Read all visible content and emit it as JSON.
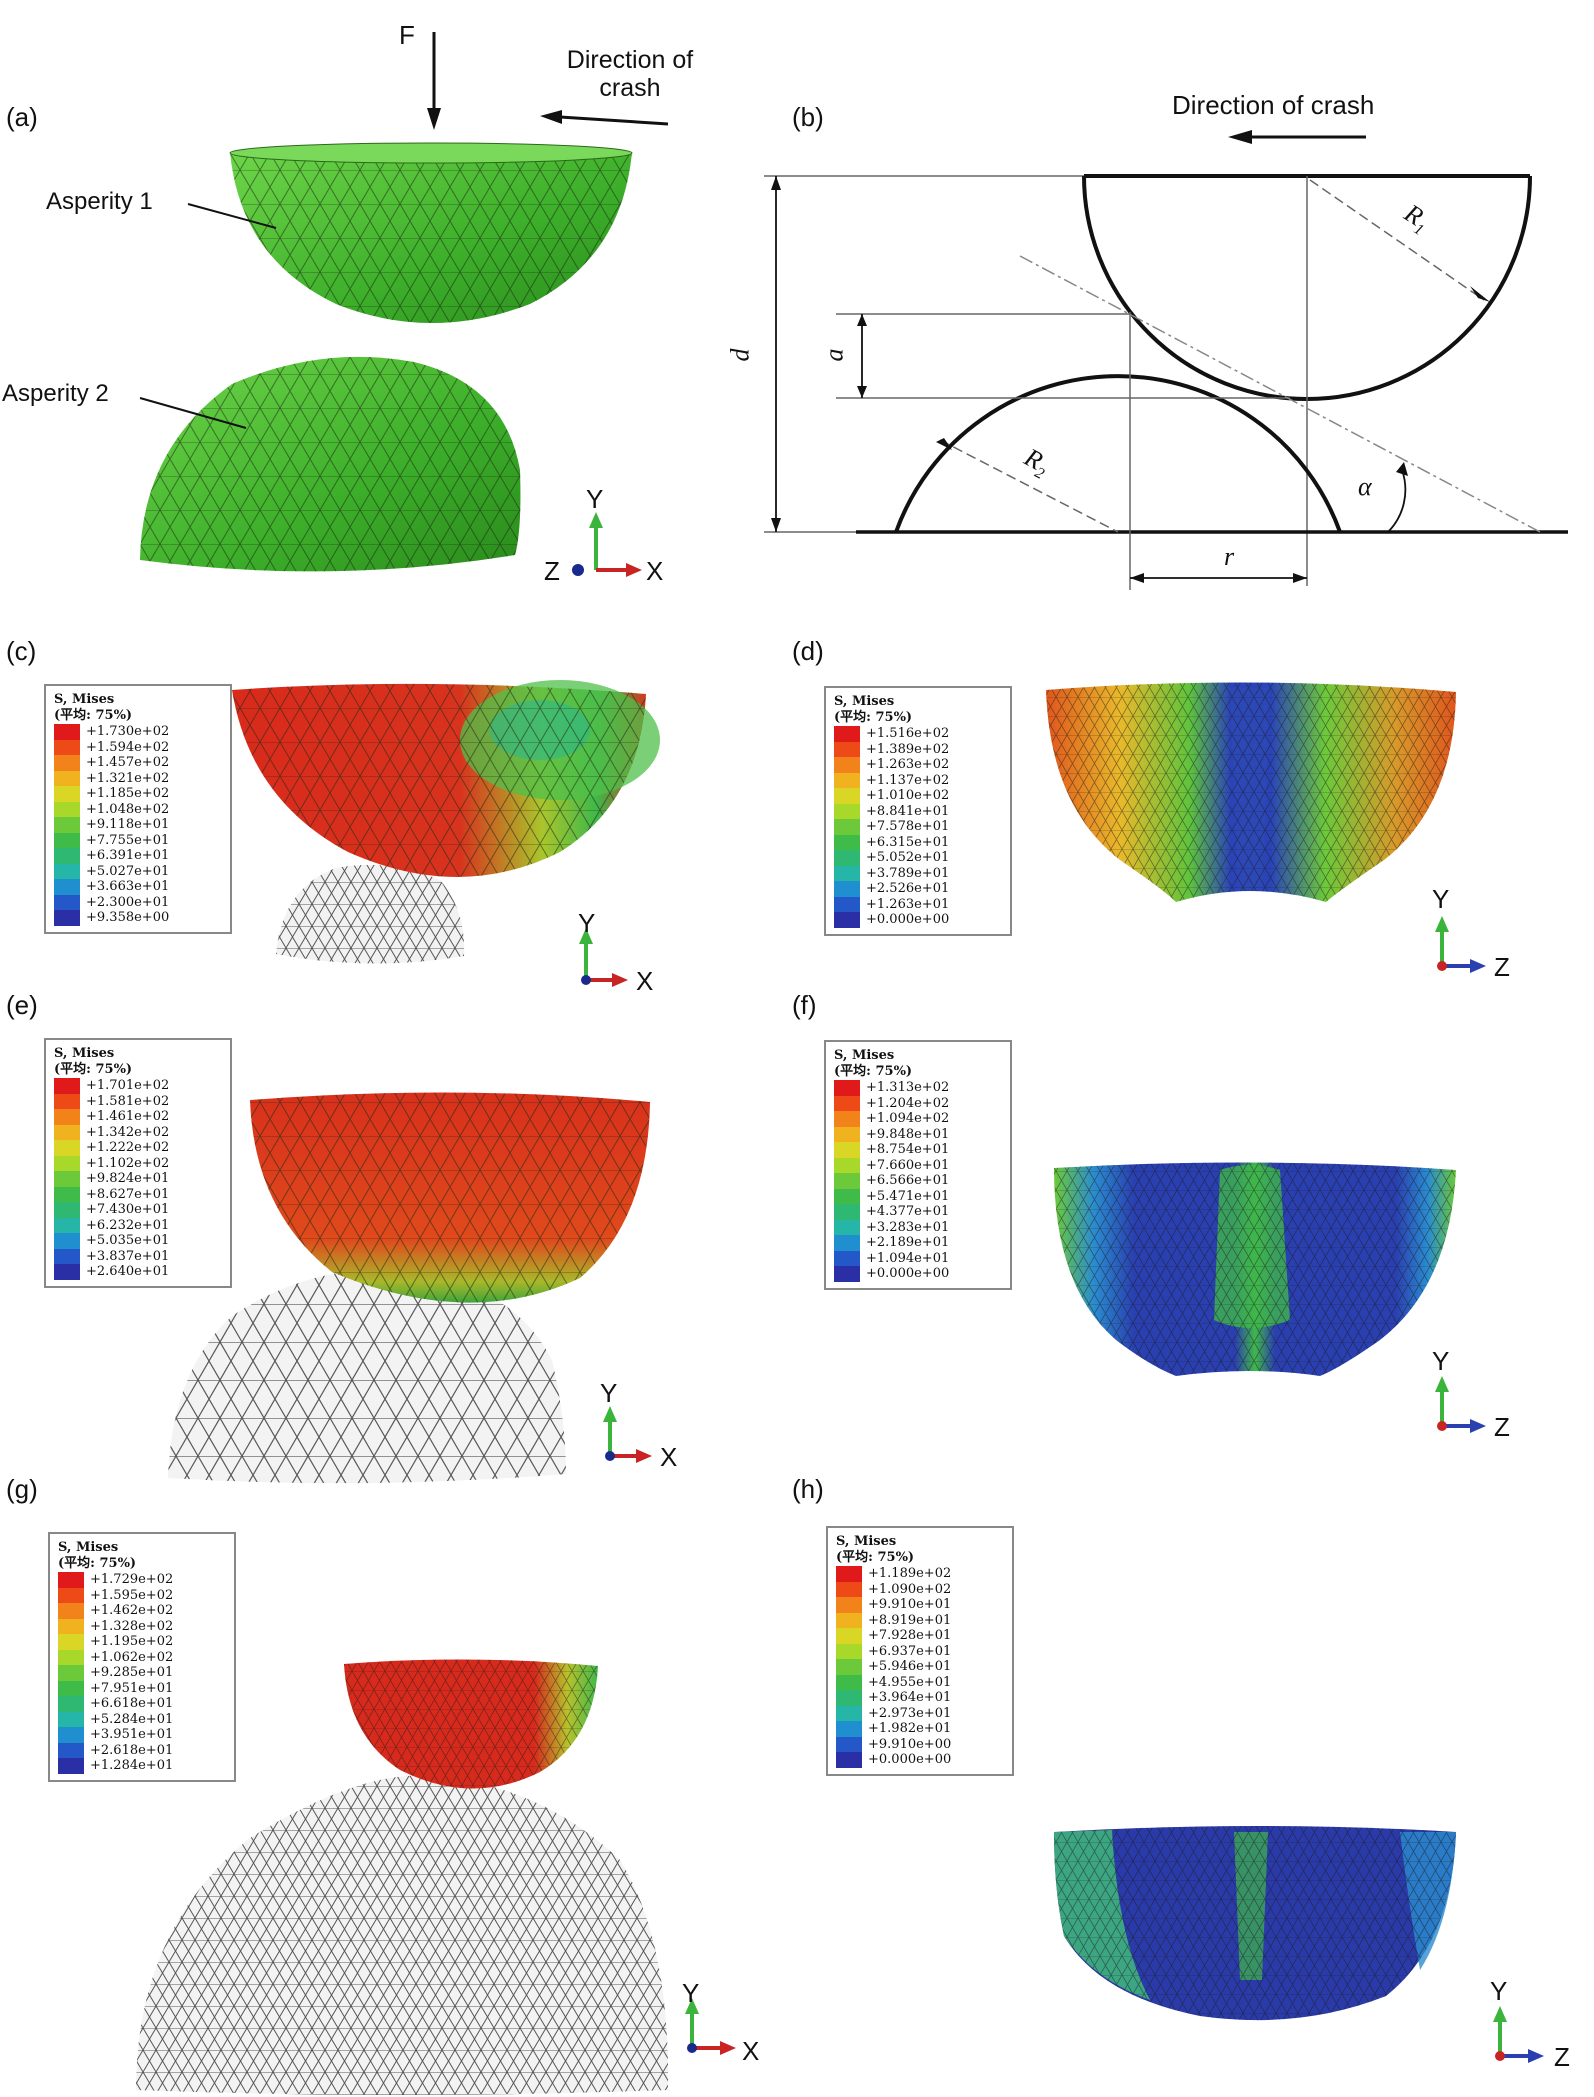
{
  "panels": {
    "a": {
      "label": "(a)",
      "force": "F",
      "direction": "Direction of crash",
      "asperity1": "Asperity 1",
      "asperity2": "Asperity 2",
      "axes": {
        "up": "Y",
        "left": "Z",
        "right": "X"
      }
    },
    "b": {
      "label": "(b)",
      "direction": "Direction of crash",
      "symbols": {
        "d": "d",
        "a": "a",
        "r": "r",
        "R1": "R",
        "R1_sub": "1",
        "R2": "R",
        "R2_sub": "2",
        "alpha": "α"
      }
    },
    "c": {
      "label": "(c)",
      "axes": {
        "up": "Y",
        "right": "X"
      }
    },
    "d": {
      "label": "(d)",
      "axes": {
        "up": "Y",
        "right": "Z"
      }
    },
    "e": {
      "label": "(e)",
      "axes": {
        "up": "Y",
        "right": "X"
      }
    },
    "f": {
      "label": "(f)",
      "axes": {
        "up": "Y",
        "right": "Z"
      }
    },
    "g": {
      "label": "(g)",
      "axes": {
        "up": "Y",
        "right": "X"
      }
    },
    "h": {
      "label": "(h)",
      "axes": {
        "up": "Y",
        "right": "Z"
      }
    }
  },
  "legend_colors": [
    "#e01a1a",
    "#ee4a18",
    "#f2821a",
    "#f0b21e",
    "#d9d626",
    "#a8d82a",
    "#6cc93a",
    "#3fbb4a",
    "#2fb872",
    "#26b6a8",
    "#1f8fd0",
    "#2457c8",
    "#2a2fa6"
  ],
  "legends": {
    "c": {
      "title": "S, Mises",
      "avg": "(平均: 75%)",
      "values": [
        "+1.730e+02",
        "+1.594e+02",
        "+1.457e+02",
        "+1.321e+02",
        "+1.185e+02",
        "+1.048e+02",
        "+9.118e+01",
        "+7.755e+01",
        "+6.391e+01",
        "+5.027e+01",
        "+3.663e+01",
        "+2.300e+01",
        "+9.358e+00"
      ]
    },
    "d": {
      "title": "S, Mises",
      "avg": "(平均: 75%)",
      "values": [
        "+1.516e+02",
        "+1.389e+02",
        "+1.263e+02",
        "+1.137e+02",
        "+1.010e+02",
        "+8.841e+01",
        "+7.578e+01",
        "+6.315e+01",
        "+5.052e+01",
        "+3.789e+01",
        "+2.526e+01",
        "+1.263e+01",
        "+0.000e+00"
      ]
    },
    "e": {
      "title": "S, Mises",
      "avg": "(平均: 75%)",
      "values": [
        "+1.701e+02",
        "+1.581e+02",
        "+1.461e+02",
        "+1.342e+02",
        "+1.222e+02",
        "+1.102e+02",
        "+9.824e+01",
        "+8.627e+01",
        "+7.430e+01",
        "+6.232e+01",
        "+5.035e+01",
        "+3.837e+01",
        "+2.640e+01"
      ]
    },
    "f": {
      "title": "S, Mises",
      "avg": "(平均: 75%)",
      "values": [
        "+1.313e+02",
        "+1.204e+02",
        "+1.094e+02",
        "+9.848e+01",
        "+8.754e+01",
        "+7.660e+01",
        "+6.566e+01",
        "+5.471e+01",
        "+4.377e+01",
        "+3.283e+01",
        "+2.189e+01",
        "+1.094e+01",
        "+0.000e+00"
      ]
    },
    "g": {
      "title": "S, Mises",
      "avg": "(平均: 75%)",
      "values": [
        "+1.729e+02",
        "+1.595e+02",
        "+1.462e+02",
        "+1.328e+02",
        "+1.195e+02",
        "+1.062e+02",
        "+9.285e+01",
        "+7.951e+01",
        "+6.618e+01",
        "+5.284e+01",
        "+3.951e+01",
        "+2.618e+01",
        "+1.284e+01"
      ]
    },
    "h": {
      "title": "S, Mises",
      "avg": "(平均: 75%)",
      "values": [
        "+1.189e+02",
        "+1.090e+02",
        "+9.910e+01",
        "+8.919e+01",
        "+7.928e+01",
        "+6.937e+01",
        "+5.946e+01",
        "+4.955e+01",
        "+3.964e+01",
        "+2.973e+01",
        "+1.982e+01",
        "+9.910e+00",
        "+0.000e+00"
      ]
    }
  }
}
